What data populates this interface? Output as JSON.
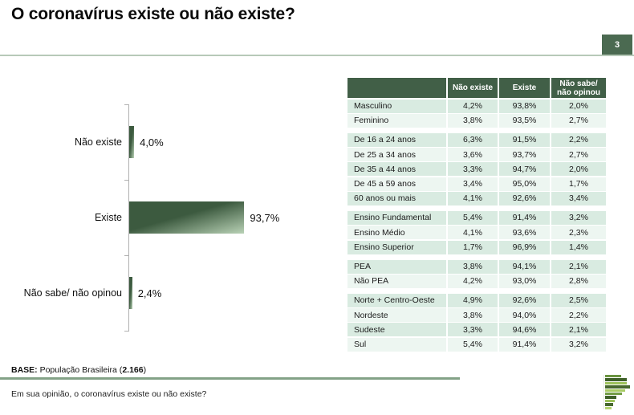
{
  "page": {
    "title": "O coronavírus existe ou não existe?",
    "page_number": "3"
  },
  "colors": {
    "page_box": "#4b6a51",
    "accent_line": "#b7c9b8",
    "header_green": "#415f47",
    "row_mint": "#d9ebe1",
    "row_light": "#edf6f1",
    "bar_dark": "#3c5a3f",
    "bar_light": "#b9d2b6",
    "footer_line": "#83a287"
  },
  "chart_data": {
    "type": "bar",
    "orientation": "horizontal",
    "title": "O coronavírus existe ou não existe?",
    "categories": [
      "Não existe",
      "Existe",
      "Não sabe/ não opinou"
    ],
    "values": [
      4.0,
      93.7,
      2.4
    ],
    "labels": [
      "4,0%",
      "93,7%",
      "2,4%"
    ],
    "xlim": [
      0,
      100
    ],
    "grid": false,
    "legend": false
  },
  "table": {
    "headers": [
      "",
      "Não existe",
      "Existe",
      "Não sabe/ não opinou"
    ],
    "groups": [
      {
        "name": "sexo",
        "rows": [
          [
            "Masculino",
            "4,2%",
            "93,8%",
            "2,0%"
          ],
          [
            "Feminino",
            "3,8%",
            "93,5%",
            "2,7%"
          ]
        ]
      },
      {
        "name": "idade",
        "rows": [
          [
            "De 16 a 24 anos",
            "6,3%",
            "91,5%",
            "2,2%"
          ],
          [
            "De 25 a 34 anos",
            "3,6%",
            "93,7%",
            "2,7%"
          ],
          [
            "De 35 a 44 anos",
            "3,3%",
            "94,7%",
            "2,0%"
          ],
          [
            "De 45 a 59 anos",
            "3,4%",
            "95,0%",
            "1,7%"
          ],
          [
            "60 anos ou mais",
            "4,1%",
            "92,6%",
            "3,4%"
          ]
        ]
      },
      {
        "name": "escolaridade",
        "rows": [
          [
            "Ensino Fundamental",
            "5,4%",
            "91,4%",
            "3,2%"
          ],
          [
            "Ensino Médio",
            "4,1%",
            "93,6%",
            "2,3%"
          ],
          [
            "Ensino Superior",
            "1,7%",
            "96,9%",
            "1,4%"
          ]
        ]
      },
      {
        "name": "pea",
        "rows": [
          [
            "PEA",
            "3,8%",
            "94,1%",
            "2,1%"
          ],
          [
            "Não PEA",
            "4,2%",
            "93,0%",
            "2,8%"
          ]
        ]
      },
      {
        "name": "regiao",
        "rows": [
          [
            "Norte + Centro-Oeste",
            "4,9%",
            "92,6%",
            "2,5%"
          ],
          [
            "Nordeste",
            "3,8%",
            "94,0%",
            "2,2%"
          ],
          [
            "Sudeste",
            "3,3%",
            "94,6%",
            "2,1%"
          ],
          [
            "Sul",
            "5,4%",
            "91,4%",
            "3,2%"
          ]
        ]
      }
    ]
  },
  "footer": {
    "base_label": "BASE:",
    "base_text": " População Brasileira (",
    "base_value": "2.166",
    "base_close": ")",
    "question": "Em sua opinião, o coronavírus existe ou não existe?"
  },
  "logo": {
    "bars": [
      {
        "w": 20,
        "color": "#6a9440"
      },
      {
        "w": 27,
        "color": "#3f6029"
      },
      {
        "w": 27,
        "color": "#9dc25a"
      },
      {
        "w": 31,
        "color": "#48682e"
      },
      {
        "w": 25,
        "color": "#a9cc66"
      },
      {
        "w": 21,
        "color": "#729c44"
      },
      {
        "w": 14,
        "color": "#3f6029"
      },
      {
        "w": 12,
        "color": "#9dc25a"
      },
      {
        "w": 10,
        "color": "#48682e"
      },
      {
        "w": 8,
        "color": "#b4d470"
      }
    ]
  }
}
